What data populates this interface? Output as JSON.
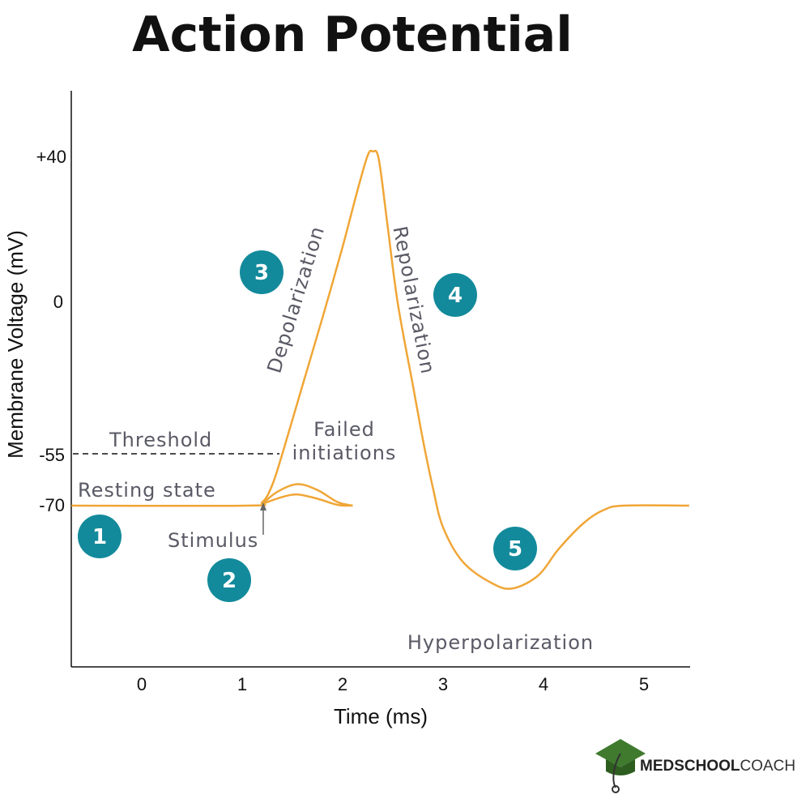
{
  "title": "Action Potential",
  "colors": {
    "curve": "#f0a636",
    "badge": "#138a9b",
    "label": "#5a5a66",
    "axis": "#111111",
    "logo_green": "#3f7a2e"
  },
  "chart_data": {
    "type": "line",
    "xlabel": "Time (ms)",
    "ylabel": "Membrane Voltage (mV)",
    "x_ticks": [
      "0",
      "1",
      "2",
      "3",
      "4",
      "5"
    ],
    "y_ticks": [
      "+40",
      "0",
      "-55",
      "-70"
    ],
    "xlim": [
      -0.7,
      5.45
    ],
    "y_landmarks_mV": [
      40,
      0,
      -55,
      -70
    ],
    "threshold_mV": -55,
    "resting_mV": -70,
    "series": [
      {
        "role": "action-potential",
        "points": [
          [
            -0.7,
            -70
          ],
          [
            1.05,
            -70
          ],
          [
            1.2,
            -69
          ],
          [
            1.3,
            -64
          ],
          [
            1.4,
            -55
          ],
          [
            1.6,
            -30
          ],
          [
            1.8,
            -5
          ],
          [
            2.0,
            15
          ],
          [
            2.15,
            30
          ],
          [
            2.25,
            39
          ],
          [
            2.3,
            40
          ],
          [
            2.36,
            38
          ],
          [
            2.45,
            20
          ],
          [
            2.55,
            0
          ],
          [
            2.7,
            -30
          ],
          [
            2.8,
            -50
          ],
          [
            2.9,
            -65
          ],
          [
            3.0,
            -75
          ],
          [
            3.2,
            -83
          ],
          [
            3.5,
            -88
          ],
          [
            3.7,
            -89
          ],
          [
            3.95,
            -86
          ],
          [
            4.15,
            -80
          ],
          [
            4.4,
            -74
          ],
          [
            4.6,
            -71
          ],
          [
            4.8,
            -70
          ],
          [
            5.45,
            -70
          ]
        ]
      },
      {
        "role": "failed-initiation-high",
        "points": [
          [
            1.2,
            -69.5
          ],
          [
            1.35,
            -66
          ],
          [
            1.55,
            -63.8
          ],
          [
            1.75,
            -65.5
          ],
          [
            1.95,
            -69
          ],
          [
            2.1,
            -70
          ]
        ]
      },
      {
        "role": "failed-initiation-low",
        "points": [
          [
            1.2,
            -69.5
          ],
          [
            1.4,
            -67.5
          ],
          [
            1.55,
            -66.8
          ],
          [
            1.75,
            -68
          ],
          [
            1.95,
            -69.8
          ],
          [
            2.1,
            -70
          ]
        ]
      }
    ]
  },
  "annotations": {
    "threshold": "Threshold",
    "resting": "Resting state",
    "stimulus": "Stimulus",
    "failed_line1": "Failed",
    "failed_line2": "initiations",
    "depolarization": "Depolarization",
    "repolarization": "Repolarization",
    "hyperpolarization": "Hyperpolarization"
  },
  "badges": [
    "1",
    "2",
    "3",
    "4",
    "5"
  ],
  "logo": {
    "bold": "MEDSCHOOL",
    "light": "COACH"
  }
}
